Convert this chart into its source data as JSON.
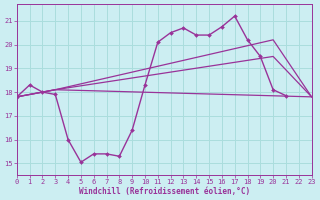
{
  "bg_color": "#cceef2",
  "line_color": "#993399",
  "grid_color": "#aadddd",
  "xlabel": "Windchill (Refroidissement éolien,°C)",
  "xlim": [
    0,
    23
  ],
  "ylim": [
    14.5,
    21.7
  ],
  "yticks": [
    15,
    16,
    17,
    18,
    19,
    20,
    21
  ],
  "xticks": [
    0,
    1,
    2,
    3,
    4,
    5,
    6,
    7,
    8,
    9,
    10,
    11,
    12,
    13,
    14,
    15,
    16,
    17,
    18,
    19,
    20,
    21,
    22,
    23
  ],
  "main_x": [
    0,
    1,
    2,
    3,
    4,
    5,
    6,
    7,
    8,
    9,
    10,
    11,
    12,
    13,
    14,
    15,
    16,
    17,
    18,
    19,
    20,
    21
  ],
  "main_y": [
    17.8,
    18.3,
    18.0,
    17.9,
    16.0,
    15.05,
    15.4,
    15.4,
    15.3,
    16.4,
    18.3,
    20.1,
    20.5,
    20.7,
    20.4,
    20.4,
    20.75,
    21.2,
    20.2,
    19.5,
    18.1,
    17.85
  ],
  "line2_x": [
    0,
    3,
    23
  ],
  "line2_y": [
    17.8,
    18.1,
    17.8
  ],
  "line3_x": [
    0,
    3,
    20,
    23
  ],
  "line3_y": [
    17.8,
    18.1,
    19.5,
    17.8
  ],
  "line4_x": [
    0,
    3,
    20,
    23
  ],
  "line4_y": [
    17.8,
    18.1,
    20.2,
    17.8
  ]
}
